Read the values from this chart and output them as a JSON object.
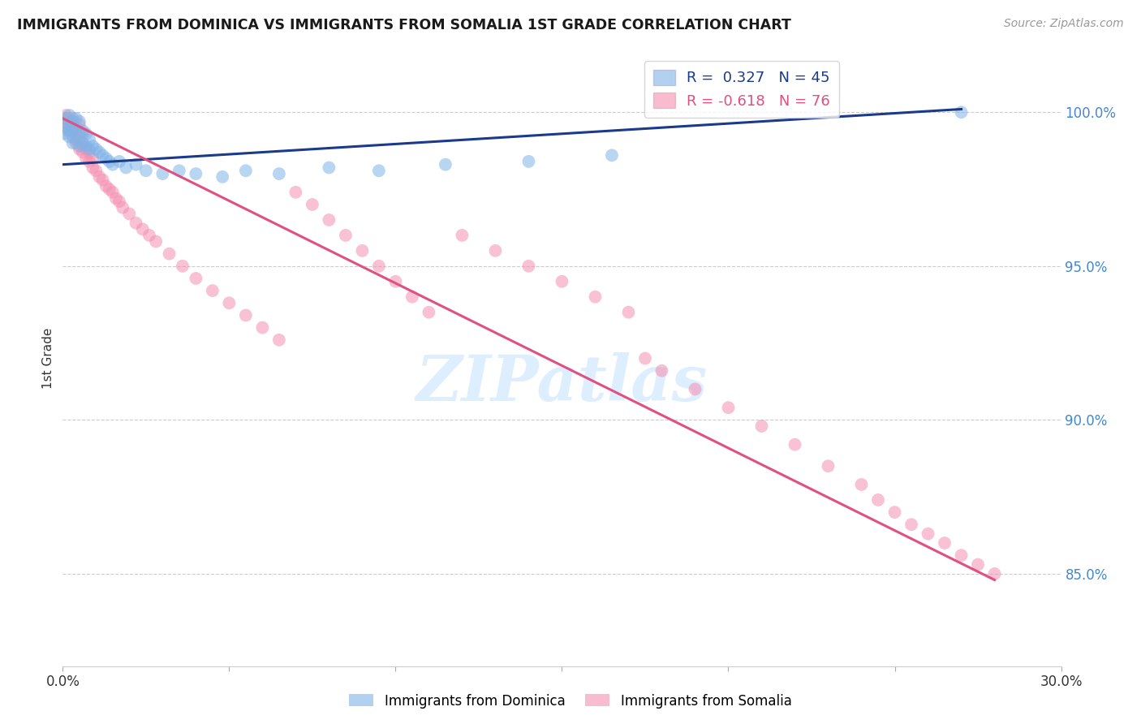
{
  "title": "IMMIGRANTS FROM DOMINICA VS IMMIGRANTS FROM SOMALIA 1ST GRADE CORRELATION CHART",
  "source": "Source: ZipAtlas.com",
  "ylabel": "1st Grade",
  "ytick_labels": [
    "100.0%",
    "95.0%",
    "90.0%",
    "85.0%"
  ],
  "ytick_values": [
    1.0,
    0.95,
    0.9,
    0.85
  ],
  "xlim": [
    0.0,
    0.3
  ],
  "ylim": [
    0.82,
    1.02
  ],
  "legend_blue_r": "0.327",
  "legend_blue_n": "45",
  "legend_pink_r": "-0.618",
  "legend_pink_n": "76",
  "blue_color": "#7fb3e8",
  "pink_color": "#f48fb1",
  "blue_line_color": "#1a3a8c",
  "pink_line_color": "#e05080",
  "watermark": "ZIPatlas",
  "watermark_color": "#ddeeff",
  "background_color": "#ffffff",
  "grid_color": "#cccccc",
  "blue_scatter_x": [
    0.0005,
    0.001,
    0.001,
    0.0015,
    0.002,
    0.002,
    0.002,
    0.003,
    0.003,
    0.003,
    0.004,
    0.004,
    0.004,
    0.005,
    0.005,
    0.005,
    0.006,
    0.006,
    0.007,
    0.007,
    0.008,
    0.008,
    0.009,
    0.01,
    0.011,
    0.012,
    0.013,
    0.014,
    0.015,
    0.017,
    0.019,
    0.022,
    0.025,
    0.03,
    0.035,
    0.04,
    0.048,
    0.055,
    0.065,
    0.08,
    0.095,
    0.115,
    0.14,
    0.165,
    0.27
  ],
  "blue_scatter_y": [
    0.993,
    0.995,
    0.998,
    0.994,
    0.992,
    0.996,
    0.999,
    0.99,
    0.994,
    0.997,
    0.991,
    0.995,
    0.998,
    0.989,
    0.993,
    0.997,
    0.99,
    0.994,
    0.989,
    0.993,
    0.988,
    0.991,
    0.989,
    0.988,
    0.987,
    0.986,
    0.985,
    0.984,
    0.983,
    0.984,
    0.982,
    0.983,
    0.981,
    0.98,
    0.981,
    0.98,
    0.979,
    0.981,
    0.98,
    0.982,
    0.981,
    0.983,
    0.984,
    0.986,
    1.0
  ],
  "pink_scatter_x": [
    0.0005,
    0.001,
    0.001,
    0.0015,
    0.002,
    0.002,
    0.003,
    0.003,
    0.003,
    0.004,
    0.004,
    0.005,
    0.005,
    0.005,
    0.006,
    0.006,
    0.006,
    0.007,
    0.007,
    0.008,
    0.008,
    0.009,
    0.009,
    0.01,
    0.011,
    0.012,
    0.013,
    0.014,
    0.015,
    0.016,
    0.017,
    0.018,
    0.02,
    0.022,
    0.024,
    0.026,
    0.028,
    0.032,
    0.036,
    0.04,
    0.045,
    0.05,
    0.055,
    0.06,
    0.065,
    0.07,
    0.075,
    0.08,
    0.085,
    0.09,
    0.095,
    0.1,
    0.105,
    0.11,
    0.12,
    0.13,
    0.14,
    0.15,
    0.16,
    0.17,
    0.175,
    0.18,
    0.19,
    0.2,
    0.21,
    0.22,
    0.23,
    0.24,
    0.245,
    0.25,
    0.255,
    0.26,
    0.265,
    0.27,
    0.275,
    0.28
  ],
  "pink_scatter_y": [
    0.997,
    0.998,
    0.999,
    0.996,
    0.994,
    0.997,
    0.992,
    0.995,
    0.998,
    0.99,
    0.993,
    0.988,
    0.991,
    0.996,
    0.987,
    0.989,
    0.993,
    0.985,
    0.988,
    0.984,
    0.987,
    0.982,
    0.985,
    0.981,
    0.979,
    0.978,
    0.976,
    0.975,
    0.974,
    0.972,
    0.971,
    0.969,
    0.967,
    0.964,
    0.962,
    0.96,
    0.958,
    0.954,
    0.95,
    0.946,
    0.942,
    0.938,
    0.934,
    0.93,
    0.926,
    0.974,
    0.97,
    0.965,
    0.96,
    0.955,
    0.95,
    0.945,
    0.94,
    0.935,
    0.96,
    0.955,
    0.95,
    0.945,
    0.94,
    0.935,
    0.92,
    0.916,
    0.91,
    0.904,
    0.898,
    0.892,
    0.885,
    0.879,
    0.874,
    0.87,
    0.866,
    0.863,
    0.86,
    0.856,
    0.853,
    0.85
  ],
  "blue_trendline_x": [
    0.0,
    0.27
  ],
  "blue_trendline_y": [
    0.983,
    1.001
  ],
  "pink_trendline_x": [
    0.0,
    0.28
  ],
  "pink_trendline_y": [
    0.998,
    0.848
  ]
}
